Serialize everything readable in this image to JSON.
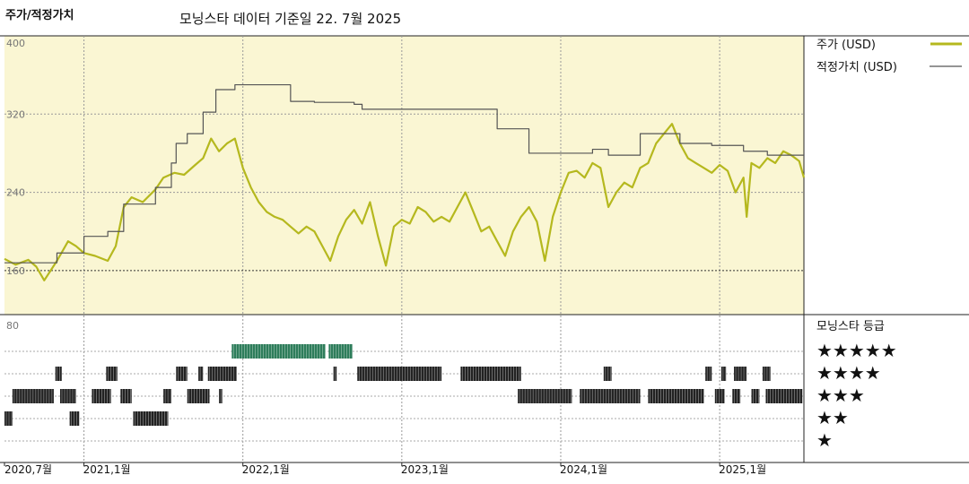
{
  "header": {
    "title": "주가/적정가치",
    "subtitle": "모닝스타 데이터 기준일 22. 7월 2025"
  },
  "colors": {
    "price": "#b5b81e",
    "fair_value": "#555555",
    "panel_bg": "#faf6d3",
    "rating_highlight": "#2e7d5b",
    "rating_bar": "#222222"
  },
  "chart_data": [
    {
      "type": "line",
      "legend": {
        "price": "주가 (USD)",
        "fair_value": "적정가치 (USD)",
        "placement": "right"
      },
      "xlim": [
        2020.55,
        2025.58
      ],
      "ylim": [
        115,
        400
      ],
      "yticks": [
        "400",
        "320",
        "240",
        "160"
      ],
      "ytick_values": [
        400,
        320,
        240,
        160
      ],
      "grid": true,
      "series": [
        {
          "name": "주가 (USD)",
          "key": "price",
          "x": [
            2020.55,
            2020.62,
            2020.7,
            2020.75,
            2020.8,
            2020.88,
            2020.95,
            2021.0,
            2021.05,
            2021.12,
            2021.2,
            2021.25,
            2021.3,
            2021.35,
            2021.42,
            2021.5,
            2021.55,
            2021.62,
            2021.68,
            2021.75,
            2021.8,
            2021.85,
            2021.9,
            2021.95,
            2022.0,
            2022.05,
            2022.1,
            2022.15,
            2022.2,
            2022.25,
            2022.3,
            2022.35,
            2022.4,
            2022.45,
            2022.5,
            2022.55,
            2022.6,
            2022.65,
            2022.7,
            2022.75,
            2022.8,
            2022.85,
            2022.9,
            2022.95,
            2023.0,
            2023.05,
            2023.1,
            2023.15,
            2023.2,
            2023.25,
            2023.3,
            2023.35,
            2023.4,
            2023.45,
            2023.5,
            2023.55,
            2023.6,
            2023.65,
            2023.7,
            2023.75,
            2023.8,
            2023.85,
            2023.9,
            2023.95,
            2024.0,
            2024.05,
            2024.1,
            2024.15,
            2024.2,
            2024.25,
            2024.3,
            2024.35,
            2024.4,
            2024.45,
            2024.5,
            2024.55,
            2024.6,
            2024.65,
            2024.7,
            2024.75,
            2024.8,
            2024.85,
            2024.9,
            2024.95,
            2025.0,
            2025.05,
            2025.1,
            2025.15,
            2025.2,
            2025.22,
            2025.25,
            2025.3,
            2025.35,
            2025.4,
            2025.45,
            2025.5,
            2025.55,
            2025.58
          ],
          "y": [
            172,
            166,
            171,
            164,
            150,
            170,
            190,
            185,
            178,
            175,
            170,
            185,
            225,
            235,
            230,
            243,
            255,
            260,
            258,
            268,
            275,
            295,
            282,
            290,
            295,
            265,
            245,
            230,
            220,
            215,
            212,
            205,
            198,
            205,
            200,
            185,
            170,
            195,
            212,
            222,
            208,
            230,
            195,
            165,
            205,
            212,
            208,
            225,
            220,
            210,
            215,
            210,
            225,
            240,
            220,
            200,
            205,
            190,
            175,
            200,
            215,
            225,
            210,
            170,
            215,
            240,
            260,
            262,
            255,
            270,
            265,
            225,
            240,
            250,
            245,
            265,
            270,
            290,
            300,
            310,
            290,
            275,
            270,
            265,
            260,
            268,
            262,
            240,
            255,
            215,
            270,
            265,
            275,
            270,
            282,
            278,
            272,
            255
          ]
        },
        {
          "name": "적정가치 (USD)",
          "key": "fair_value",
          "step": true,
          "x": [
            2020.55,
            2020.8,
            2020.88,
            2021.0,
            2021.05,
            2021.2,
            2021.3,
            2021.5,
            2021.6,
            2021.63,
            2021.7,
            2021.8,
            2021.88,
            2022.0,
            2022.3,
            2022.35,
            2022.5,
            2022.75,
            2022.8,
            2023.3,
            2023.6,
            2023.65,
            2023.85,
            2024.0,
            2024.25,
            2024.35,
            2024.5,
            2024.55,
            2024.65,
            2024.8,
            2025.0,
            2025.2,
            2025.35,
            2025.58
          ],
          "y": [
            168,
            168,
            178,
            178,
            195,
            200,
            228,
            245,
            270,
            290,
            300,
            322,
            345,
            350,
            350,
            333,
            332,
            330,
            325,
            325,
            325,
            305,
            280,
            280,
            284,
            278,
            278,
            300,
            300,
            290,
            288,
            282,
            278,
            278
          ]
        }
      ]
    },
    {
      "type": "rating",
      "title": "모닝스타 등급",
      "ytick": "80",
      "levels": [
        "★★★★★",
        "★★★★",
        "★★★",
        "★★",
        "★"
      ],
      "x_tick_labels": [
        "2020,7월",
        "2021,1월",
        "2022,1월",
        "2023,1월",
        "2024,1월",
        "2025,1월"
      ],
      "x_tick_values": [
        2020.55,
        2021.05,
        2022.05,
        2023.05,
        2024.05,
        2025.05
      ],
      "segments": [
        {
          "stars": 5,
          "from": 2021.98,
          "to": 2022.57
        },
        {
          "stars": 5,
          "from": 2022.59,
          "to": 2022.74
        },
        {
          "stars": 4,
          "from": 2020.87,
          "to": 2020.91
        },
        {
          "stars": 4,
          "from": 2021.19,
          "to": 2021.26
        },
        {
          "stars": 4,
          "from": 2021.63,
          "to": 2021.7
        },
        {
          "stars": 4,
          "from": 2021.77,
          "to": 2021.8
        },
        {
          "stars": 4,
          "from": 2021.83,
          "to": 2022.01
        },
        {
          "stars": 4,
          "from": 2022.62,
          "to": 2022.64
        },
        {
          "stars": 4,
          "from": 2022.77,
          "to": 2023.3
        },
        {
          "stars": 4,
          "from": 2023.42,
          "to": 2023.8
        },
        {
          "stars": 4,
          "from": 2024.32,
          "to": 2024.37
        },
        {
          "stars": 4,
          "from": 2024.96,
          "to": 2025.0
        },
        {
          "stars": 4,
          "from": 2025.06,
          "to": 2025.09
        },
        {
          "stars": 4,
          "from": 2025.14,
          "to": 2025.22
        },
        {
          "stars": 4,
          "from": 2025.32,
          "to": 2025.37
        },
        {
          "stars": 3,
          "from": 2020.6,
          "to": 2020.86
        },
        {
          "stars": 3,
          "from": 2020.9,
          "to": 2021.0
        },
        {
          "stars": 3,
          "from": 2021.1,
          "to": 2021.22
        },
        {
          "stars": 3,
          "from": 2021.28,
          "to": 2021.35
        },
        {
          "stars": 3,
          "from": 2021.55,
          "to": 2021.6
        },
        {
          "stars": 3,
          "from": 2021.7,
          "to": 2021.84
        },
        {
          "stars": 3,
          "from": 2021.9,
          "to": 2021.92
        },
        {
          "stars": 3,
          "from": 2023.78,
          "to": 2024.12
        },
        {
          "stars": 3,
          "from": 2024.17,
          "to": 2024.55
        },
        {
          "stars": 3,
          "from": 2024.6,
          "to": 2024.95
        },
        {
          "stars": 3,
          "from": 2025.02,
          "to": 2025.08
        },
        {
          "stars": 3,
          "from": 2025.13,
          "to": 2025.18
        },
        {
          "stars": 3,
          "from": 2025.25,
          "to": 2025.3
        },
        {
          "stars": 3,
          "from": 2025.34,
          "to": 2025.57
        },
        {
          "stars": 2,
          "from": 2020.55,
          "to": 2020.6
        },
        {
          "stars": 2,
          "from": 2020.96,
          "to": 2021.02
        },
        {
          "stars": 2,
          "from": 2021.36,
          "to": 2021.58
        }
      ]
    }
  ]
}
